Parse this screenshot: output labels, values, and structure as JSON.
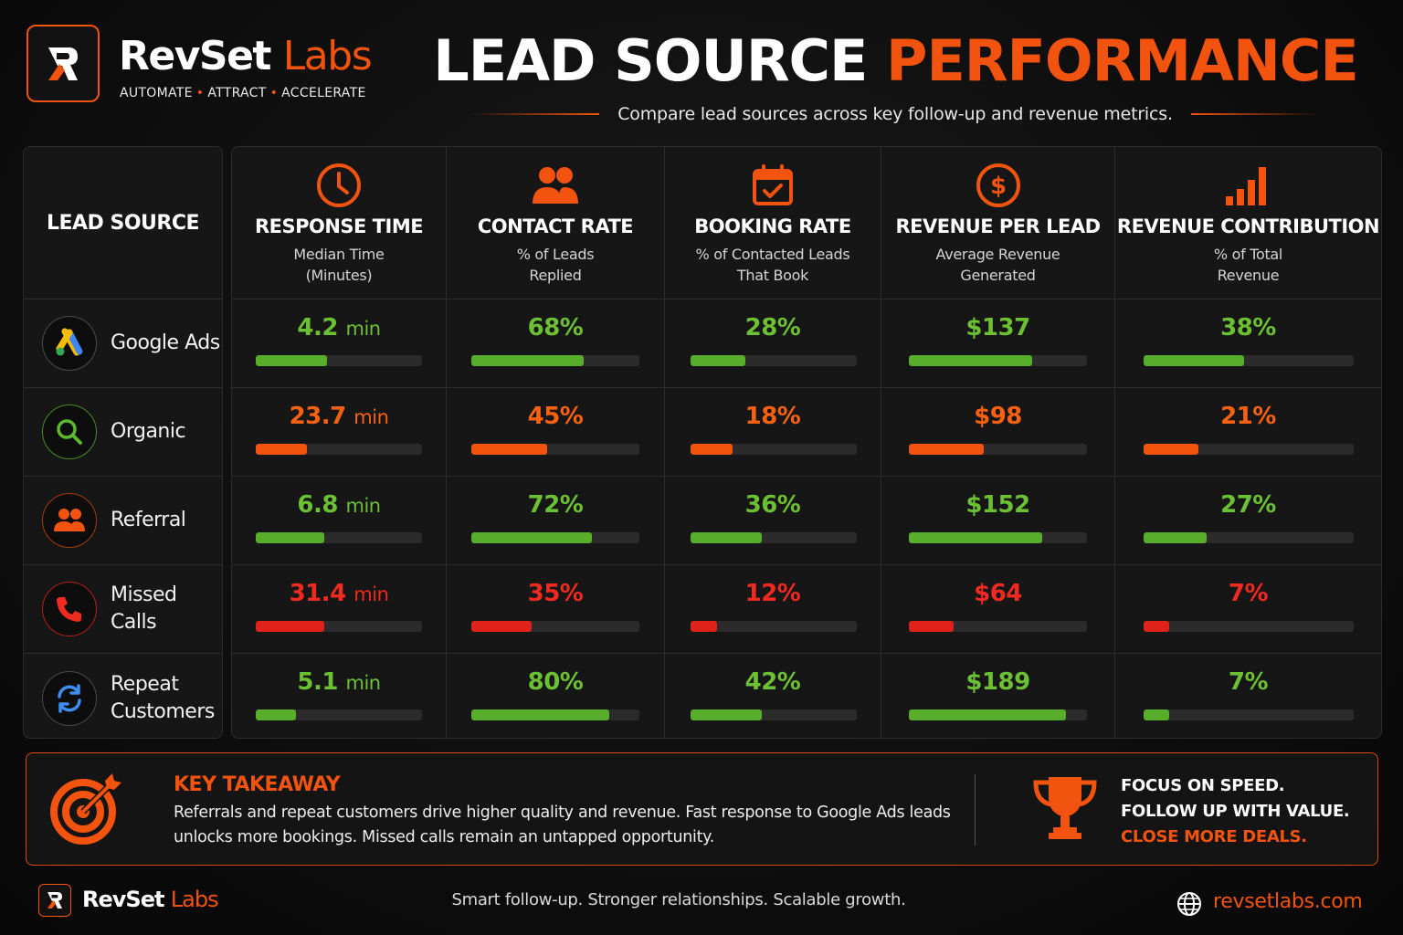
{
  "brand": {
    "name_primary": "RevSet",
    "name_accent": "Labs",
    "tagline": [
      "AUTOMATE",
      "ATTRACT",
      "ACCELERATE"
    ],
    "accent_color": "#f2530f"
  },
  "header": {
    "title_white": "LEAD SOURCE",
    "title_accent": "PERFORMANCE",
    "subtitle": "Compare lead sources across key follow-up and revenue metrics."
  },
  "sources": {
    "header": "LEAD SOURCE",
    "items": [
      {
        "label": "Google Ads",
        "icon": "google-ads-icon"
      },
      {
        "label": "Organic",
        "icon": "search-icon"
      },
      {
        "label": "Referral",
        "icon": "people-icon"
      },
      {
        "label": "Missed Calls",
        "icon": "phone-icon"
      },
      {
        "label": "Repeat Customers",
        "icon": "refresh-icon"
      }
    ]
  },
  "metrics": [
    {
      "title": "RESPONSE TIME",
      "sub1": "Median Time",
      "sub2": "(Minutes)",
      "icon": "clock-icon",
      "cells": [
        {
          "value": "4.2",
          "unit": "min",
          "status": "g",
          "fill": 0.43
        },
        {
          "value": "23.7",
          "unit": "min",
          "status": "o",
          "fill": 0.31
        },
        {
          "value": "6.8",
          "unit": "min",
          "status": "g",
          "fill": 0.41
        },
        {
          "value": "31.4",
          "unit": "min",
          "status": "r",
          "fill": 0.41
        },
        {
          "value": "5.1",
          "unit": "min",
          "status": "g",
          "fill": 0.24
        }
      ]
    },
    {
      "title": "CONTACT RATE",
      "sub1": "% of Leads",
      "sub2": "Replied",
      "icon": "users-icon",
      "cells": [
        {
          "value": "68%",
          "status": "g",
          "fill": 0.67
        },
        {
          "value": "45%",
          "status": "o",
          "fill": 0.45
        },
        {
          "value": "72%",
          "status": "g",
          "fill": 0.72
        },
        {
          "value": "35%",
          "status": "r",
          "fill": 0.36
        },
        {
          "value": "80%",
          "status": "g",
          "fill": 0.82
        }
      ]
    },
    {
      "title": "BOOKING RATE",
      "sub1": "% of Contacted Leads",
      "sub2": "That Book",
      "icon": "calendar-check-icon",
      "cells": [
        {
          "value": "28%",
          "status": "g",
          "fill": 0.33
        },
        {
          "value": "18%",
          "status": "o",
          "fill": 0.25
        },
        {
          "value": "36%",
          "status": "g",
          "fill": 0.43
        },
        {
          "value": "12%",
          "status": "r",
          "fill": 0.16
        },
        {
          "value": "42%",
          "status": "g",
          "fill": 0.43
        }
      ]
    },
    {
      "title": "REVENUE PER LEAD",
      "sub1": "Average Revenue",
      "sub2": "Generated",
      "icon": "dollar-icon",
      "cells": [
        {
          "value": "$137",
          "status": "g",
          "fill": 0.69
        },
        {
          "value": "$98",
          "status": "o",
          "fill": 0.42
        },
        {
          "value": "$152",
          "status": "g",
          "fill": 0.75
        },
        {
          "value": "$64",
          "status": "r",
          "fill": 0.25
        },
        {
          "value": "$189",
          "status": "g",
          "fill": 0.88
        }
      ]
    },
    {
      "title": "REVENUE CONTRIBUTION",
      "sub1": "% of Total",
      "sub2": "Revenue",
      "icon": "signal-bars-icon",
      "cells": [
        {
          "value": "38%",
          "status": "g",
          "fill": 0.48
        },
        {
          "value": "21%",
          "status": "o",
          "fill": 0.26
        },
        {
          "value": "27%",
          "status": "g",
          "fill": 0.3
        },
        {
          "value": "7%",
          "status": "r",
          "fill": 0.12
        },
        {
          "value": "7%",
          "status": "g",
          "fill": 0.12
        }
      ]
    }
  ],
  "takeaway": {
    "title": "KEY TAKEAWAY",
    "text": "Referrals and repeat customers drive higher quality and revenue. Fast response to Google Ads leads unlocks more bookings. Missed calls remain an untapped opportunity.",
    "right_line1": "FOCUS ON SPEED.",
    "right_line2": "FOLLOW UP WITH VALUE.",
    "right_line3": "CLOSE MORE DEALS."
  },
  "footer": {
    "tagline": "Smart follow-up. Stronger relationships. Scalable growth.",
    "url": "revsetlabs.com"
  }
}
